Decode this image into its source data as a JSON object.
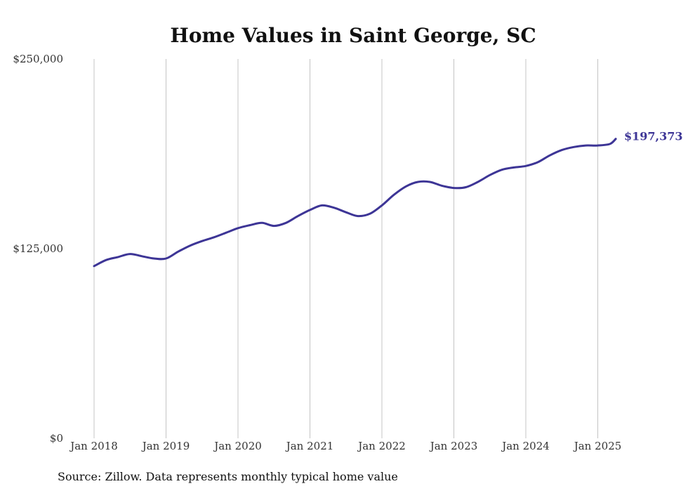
{
  "chart_data": {
    "type": "line",
    "title": "Home Values in Saint George, SC",
    "xlabel": "",
    "ylabel": "",
    "x_ticks": [
      "Jan 2018",
      "Jan 2019",
      "Jan 2020",
      "Jan 2021",
      "Jan 2022",
      "Jan 2023",
      "Jan 2024",
      "Jan 2025"
    ],
    "y_ticks": [
      "$0",
      "$125,000",
      "$250,000"
    ],
    "y_tick_values": [
      0,
      125000,
      250000
    ],
    "ylim": [
      0,
      250000
    ],
    "xlim": [
      "2018-01",
      "2025-04"
    ],
    "grid": "vertical",
    "series": [
      {
        "name": "",
        "color": "#3d3596",
        "x": [
          "2018-01",
          "2018-03",
          "2018-05",
          "2018-07",
          "2018-09",
          "2018-11",
          "2019-01",
          "2019-03",
          "2019-05",
          "2019-07",
          "2019-09",
          "2019-11",
          "2020-01",
          "2020-03",
          "2020-05",
          "2020-07",
          "2020-09",
          "2020-11",
          "2021-01",
          "2021-03",
          "2021-05",
          "2021-07",
          "2021-09",
          "2021-11",
          "2022-01",
          "2022-03",
          "2022-05",
          "2022-07",
          "2022-09",
          "2022-11",
          "2023-01",
          "2023-03",
          "2023-05",
          "2023-07",
          "2023-09",
          "2023-11",
          "2024-01",
          "2024-03",
          "2024-05",
          "2024-07",
          "2024-09",
          "2024-11",
          "2025-01",
          "2025-03",
          "2025-04"
        ],
        "values": [
          113500,
          117500,
          119500,
          121500,
          120000,
          118500,
          118500,
          123000,
          127000,
          130000,
          132500,
          135500,
          138500,
          140500,
          142000,
          140000,
          142000,
          146500,
          150500,
          153500,
          152000,
          149000,
          146500,
          148000,
          153500,
          160500,
          166000,
          169000,
          169000,
          166500,
          165000,
          165500,
          169000,
          173500,
          177000,
          178500,
          179500,
          182000,
          186500,
          190000,
          192000,
          193000,
          193000,
          194000,
          197373
        ]
      }
    ],
    "annotations": [
      {
        "text": "$197,373",
        "color": "#3d3596"
      }
    ],
    "source": "Source: Zillow. Data represents monthly typical home value"
  }
}
